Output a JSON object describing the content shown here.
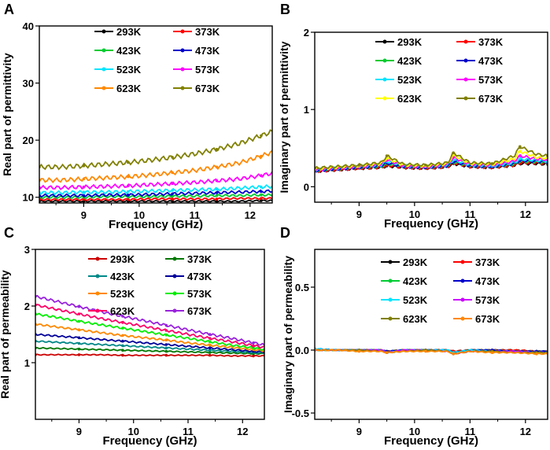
{
  "chart_data": [
    {
      "panel": "A",
      "type": "line",
      "xlabel": "Frequency (GHz)",
      "ylabel": "Real part of permittivity",
      "xlim": [
        8.2,
        12.4
      ],
      "ylim": [
        9,
        40
      ],
      "xticks": [
        9,
        10,
        11,
        12
      ],
      "yticks": [
        10,
        20,
        30,
        40
      ],
      "x": [
        8.2,
        8.6,
        9.0,
        9.4,
        9.8,
        10.2,
        10.6,
        11.0,
        11.4,
        11.8,
        12.2,
        12.4
      ],
      "series": [
        {
          "name": "293K",
          "color": "#000000",
          "values": [
            9.3,
            9.3,
            9.3,
            9.3,
            9.3,
            9.3,
            9.3,
            9.3,
            9.3,
            9.3,
            9.4,
            9.4
          ]
        },
        {
          "name": "373K",
          "color": "#ff0000",
          "values": [
            9.6,
            9.6,
            9.6,
            9.6,
            9.6,
            9.7,
            9.7,
            9.7,
            9.7,
            9.8,
            9.8,
            9.8
          ]
        },
        {
          "name": "423K",
          "color": "#00cc33",
          "values": [
            10.0,
            10.0,
            10.0,
            10.1,
            10.1,
            10.1,
            10.2,
            10.2,
            10.3,
            10.3,
            10.4,
            10.4
          ]
        },
        {
          "name": "473K",
          "color": "#0000cc",
          "values": [
            10.3,
            10.3,
            10.3,
            10.4,
            10.4,
            10.5,
            10.6,
            10.7,
            10.8,
            10.9,
            11.0,
            11.1
          ]
        },
        {
          "name": "523K",
          "color": "#00e5ff",
          "values": [
            10.8,
            10.8,
            10.9,
            10.9,
            11.0,
            11.1,
            11.2,
            11.3,
            11.4,
            11.6,
            11.8,
            11.9
          ]
        },
        {
          "name": "573K",
          "color": "#ff00ff",
          "values": [
            11.7,
            11.7,
            11.8,
            11.9,
            12.0,
            12.2,
            12.4,
            12.6,
            12.9,
            13.2,
            13.8,
            14.2
          ]
        },
        {
          "name": "623K",
          "color": "#ff8800",
          "values": [
            13.0,
            13.0,
            13.2,
            13.4,
            13.6,
            13.9,
            14.3,
            14.7,
            15.3,
            16.0,
            17.2,
            17.9
          ]
        },
        {
          "name": "673K",
          "color": "#808000",
          "values": [
            15.3,
            15.3,
            15.5,
            15.8,
            16.1,
            16.5,
            17.0,
            17.6,
            18.4,
            19.4,
            20.8,
            21.5
          ]
        }
      ]
    },
    {
      "panel": "B",
      "type": "line",
      "xlabel": "Frequency (GHz)",
      "ylabel": "Imaginary part of permittivity",
      "xlim": [
        8.2,
        12.4
      ],
      "ylim": [
        -0.2,
        2
      ],
      "xticks": [
        9,
        10,
        11,
        12
      ],
      "yticks": [
        0,
        1,
        2
      ],
      "x": [
        8.2,
        8.6,
        9.0,
        9.4,
        9.5,
        9.8,
        10.2,
        10.6,
        10.7,
        11.0,
        11.4,
        11.8,
        11.9,
        12.2,
        12.4
      ],
      "series": [
        {
          "name": "293K",
          "color": "#000000",
          "values": [
            0.2,
            0.22,
            0.24,
            0.25,
            0.27,
            0.25,
            0.24,
            0.26,
            0.3,
            0.26,
            0.25,
            0.28,
            0.3,
            0.3,
            0.29
          ]
        },
        {
          "name": "373K",
          "color": "#ff0000",
          "values": [
            0.2,
            0.22,
            0.24,
            0.25,
            0.28,
            0.25,
            0.24,
            0.26,
            0.31,
            0.26,
            0.25,
            0.28,
            0.31,
            0.31,
            0.3
          ]
        },
        {
          "name": "423K",
          "color": "#00cc33",
          "values": [
            0.21,
            0.23,
            0.25,
            0.26,
            0.3,
            0.26,
            0.25,
            0.27,
            0.32,
            0.27,
            0.26,
            0.29,
            0.33,
            0.32,
            0.31
          ]
        },
        {
          "name": "473K",
          "color": "#0000cc",
          "values": [
            0.21,
            0.23,
            0.25,
            0.27,
            0.31,
            0.26,
            0.25,
            0.27,
            0.33,
            0.27,
            0.26,
            0.3,
            0.34,
            0.33,
            0.32
          ]
        },
        {
          "name": "523K",
          "color": "#00e5ff",
          "values": [
            0.22,
            0.24,
            0.26,
            0.28,
            0.33,
            0.27,
            0.26,
            0.28,
            0.35,
            0.28,
            0.27,
            0.31,
            0.36,
            0.34,
            0.33
          ]
        },
        {
          "name": "573K",
          "color": "#ff00ff",
          "values": [
            0.22,
            0.24,
            0.26,
            0.29,
            0.35,
            0.27,
            0.26,
            0.29,
            0.38,
            0.29,
            0.28,
            0.33,
            0.4,
            0.36,
            0.35
          ]
        },
        {
          "name": "623K",
          "color": "#ffff00",
          "values": [
            0.23,
            0.25,
            0.27,
            0.3,
            0.37,
            0.28,
            0.27,
            0.3,
            0.41,
            0.3,
            0.29,
            0.36,
            0.46,
            0.38,
            0.37
          ]
        },
        {
          "name": "673K",
          "color": "#808000",
          "values": [
            0.24,
            0.26,
            0.28,
            0.31,
            0.4,
            0.29,
            0.28,
            0.31,
            0.44,
            0.31,
            0.3,
            0.4,
            0.52,
            0.42,
            0.4
          ]
        }
      ]
    },
    {
      "panel": "C",
      "type": "line",
      "xlabel": "Frequency (GHz)",
      "ylabel": "Real part of permeability",
      "xlim": [
        8.2,
        12.4
      ],
      "ylim": [
        0,
        3
      ],
      "xticks": [
        9,
        10,
        11,
        12
      ],
      "yticks": [
        1,
        2,
        3
      ],
      "x": [
        8.2,
        8.6,
        9.0,
        9.4,
        9.8,
        10.2,
        10.6,
        11.0,
        11.4,
        11.8,
        12.2,
        12.4
      ],
      "series": [
        {
          "name": "293K",
          "color": "#cc0000",
          "values": [
            1.14,
            1.14,
            1.14,
            1.14,
            1.13,
            1.13,
            1.13,
            1.13,
            1.13,
            1.12,
            1.12,
            1.12
          ]
        },
        {
          "name": "373K",
          "color": "#007700",
          "values": [
            1.26,
            1.25,
            1.24,
            1.23,
            1.22,
            1.21,
            1.2,
            1.19,
            1.18,
            1.17,
            1.16,
            1.16
          ]
        },
        {
          "name": "423K",
          "color": "#008888",
          "values": [
            1.38,
            1.36,
            1.34,
            1.32,
            1.3,
            1.28,
            1.26,
            1.24,
            1.22,
            1.2,
            1.18,
            1.17
          ]
        },
        {
          "name": "473K",
          "color": "#000099",
          "values": [
            1.5,
            1.47,
            1.44,
            1.41,
            1.38,
            1.35,
            1.32,
            1.29,
            1.26,
            1.23,
            1.2,
            1.19
          ]
        },
        {
          "name": "523K",
          "color": "#ff8800",
          "values": [
            1.68,
            1.63,
            1.58,
            1.53,
            1.48,
            1.44,
            1.4,
            1.35,
            1.31,
            1.27,
            1.23,
            1.21
          ]
        },
        {
          "name": "573K",
          "color": "#00ee00",
          "values": [
            1.86,
            1.8,
            1.73,
            1.67,
            1.61,
            1.55,
            1.49,
            1.43,
            1.37,
            1.31,
            1.26,
            1.23
          ]
        },
        {
          "name": "623K",
          "color": "#ff0066",
          "values": [
            2.02,
            1.94,
            1.86,
            1.78,
            1.71,
            1.64,
            1.57,
            1.5,
            1.43,
            1.37,
            1.3,
            1.27
          ]
        },
        {
          "name": "673K",
          "color": "#9922dd",
          "values": [
            2.17,
            2.08,
            1.99,
            1.9,
            1.82,
            1.74,
            1.66,
            1.58,
            1.5,
            1.43,
            1.35,
            1.31
          ]
        }
      ]
    },
    {
      "panel": "D",
      "type": "line",
      "xlabel": "Frequency (GHz)",
      "ylabel": "Imaginary part of permeability",
      "xlim": [
        8.2,
        12.4
      ],
      "ylim": [
        -0.55,
        0.8
      ],
      "xticks": [
        9,
        10,
        11,
        12
      ],
      "yticks": [
        -0.5,
        0.0,
        0.5
      ],
      "x": [
        8.2,
        8.6,
        9.0,
        9.4,
        9.5,
        9.8,
        10.2,
        10.6,
        10.7,
        11.0,
        11.4,
        11.8,
        12.2,
        12.4
      ],
      "series": [
        {
          "name": "293K",
          "color": "#000000",
          "values": [
            0.0,
            0.0,
            0.0,
            0.0,
            -0.01,
            0.0,
            0.0,
            0.0,
            -0.01,
            0.0,
            0.0,
            0.0,
            -0.01,
            -0.01
          ]
        },
        {
          "name": "373K",
          "color": "#ff0000",
          "values": [
            0.0,
            0.0,
            0.0,
            0.0,
            -0.01,
            0.0,
            0.0,
            0.0,
            -0.01,
            0.0,
            0.0,
            0.0,
            -0.01,
            -0.01
          ]
        },
        {
          "name": "423K",
          "color": "#00cc33",
          "values": [
            0.0,
            0.0,
            0.0,
            0.0,
            -0.01,
            0.0,
            0.0,
            0.0,
            -0.02,
            0.0,
            0.0,
            -0.01,
            -0.01,
            -0.01
          ]
        },
        {
          "name": "473K",
          "color": "#0000cc",
          "values": [
            0.01,
            0.0,
            0.0,
            0.0,
            -0.01,
            0.0,
            0.0,
            0.0,
            -0.02,
            0.0,
            0.0,
            -0.01,
            -0.01,
            -0.01
          ]
        },
        {
          "name": "523K",
          "color": "#00e5ff",
          "values": [
            0.01,
            0.0,
            0.0,
            0.0,
            -0.02,
            0.0,
            0.0,
            0.0,
            -0.02,
            0.0,
            -0.01,
            -0.01,
            -0.02,
            -0.02
          ]
        },
        {
          "name": "573K",
          "color": "#cc00ff",
          "values": [
            0.0,
            0.0,
            0.0,
            0.0,
            -0.02,
            0.0,
            0.0,
            -0.01,
            -0.03,
            -0.01,
            -0.01,
            -0.01,
            -0.02,
            -0.02
          ]
        },
        {
          "name": "623K",
          "color": "#808000",
          "values": [
            0.0,
            0.0,
            0.0,
            -0.01,
            -0.02,
            -0.01,
            0.0,
            -0.01,
            -0.03,
            -0.01,
            -0.01,
            -0.02,
            -0.02,
            -0.02
          ]
        },
        {
          "name": "673K",
          "color": "#ff8800",
          "values": [
            0.0,
            0.0,
            -0.01,
            -0.01,
            -0.02,
            -0.01,
            -0.01,
            -0.01,
            -0.03,
            -0.01,
            -0.02,
            -0.02,
            -0.03,
            -0.03
          ]
        }
      ]
    }
  ]
}
